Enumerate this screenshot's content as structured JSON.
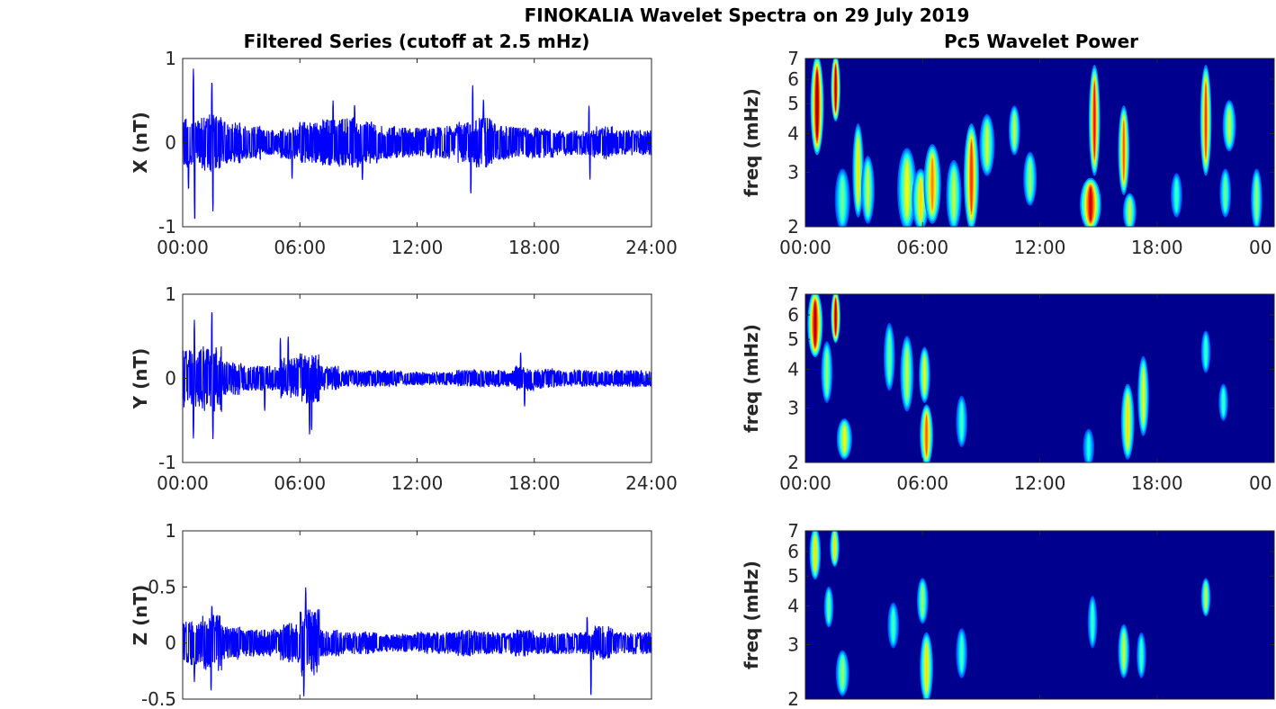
{
  "title": "FINOKALIA Wavelet Spectra on 29 July 2019",
  "left_title": "Filtered Series (cutoff at 2.5 mHz)",
  "right_title": "Pc5 Wavelet Power",
  "colors": {
    "series": "#0000ff",
    "background_power": "#00008f",
    "axis": "#262626"
  },
  "chart_data": [
    {
      "type": "line",
      "component": "X",
      "ylabel": "X (nT)",
      "ylim": [
        -1,
        1
      ],
      "yticks": [
        "-1",
        "0",
        "1"
      ],
      "ytick_values": [
        -1,
        0,
        1
      ],
      "xlim_hours": [
        0,
        24
      ],
      "xticks": [
        "00:00",
        "06:00",
        "12:00",
        "18:00",
        "24:00"
      ],
      "hourly_envelope_nT": [
        0.3,
        0.35,
        0.25,
        0.2,
        0.15,
        0.2,
        0.25,
        0.28,
        0.3,
        0.25,
        0.2,
        0.18,
        0.18,
        0.2,
        0.25,
        0.3,
        0.2,
        0.18,
        0.18,
        0.15,
        0.15,
        0.2,
        0.15,
        0.15
      ],
      "spikes": [
        [
          0.55,
          0.92
        ],
        [
          0.62,
          -1.0
        ],
        [
          1.5,
          0.78
        ],
        [
          1.55,
          -0.85
        ],
        [
          0.3,
          -0.6
        ],
        [
          7.7,
          0.52
        ],
        [
          8.8,
          0.48
        ],
        [
          14.85,
          0.7
        ],
        [
          14.75,
          -0.65
        ],
        [
          15.4,
          0.55
        ],
        [
          20.8,
          0.45
        ],
        [
          20.85,
          -0.45
        ],
        [
          5.6,
          -0.45
        ],
        [
          9.2,
          -0.48
        ]
      ]
    },
    {
      "type": "line",
      "component": "Y",
      "ylabel": "Y (nT)",
      "ylim": [
        -1,
        1
      ],
      "yticks": [
        "-1",
        "0",
        "1"
      ],
      "ytick_values": [
        -1,
        0,
        1
      ],
      "xlim_hours": [
        0,
        24
      ],
      "xticks": [
        "00:00",
        "06:00",
        "12:00",
        "18:00",
        "24:00"
      ],
      "hourly_envelope_nT": [
        0.35,
        0.4,
        0.2,
        0.15,
        0.15,
        0.25,
        0.3,
        0.15,
        0.1,
        0.1,
        0.1,
        0.08,
        0.08,
        0.08,
        0.1,
        0.1,
        0.1,
        0.15,
        0.12,
        0.1,
        0.1,
        0.1,
        0.1,
        0.1
      ],
      "spikes": [
        [
          1.5,
          0.86
        ],
        [
          0.6,
          0.7
        ],
        [
          0.55,
          -0.75
        ],
        [
          1.55,
          -0.75
        ],
        [
          5.0,
          0.5
        ],
        [
          5.4,
          0.52
        ],
        [
          6.5,
          -0.7
        ],
        [
          6.6,
          -0.65
        ],
        [
          17.3,
          0.32
        ],
        [
          17.5,
          -0.35
        ],
        [
          4.2,
          -0.4
        ]
      ]
    },
    {
      "type": "line",
      "component": "Z",
      "ylabel": "Z (nT)",
      "ylim": [
        -0.5,
        1
      ],
      "yticks": [
        "-0.5",
        "0",
        "0.5",
        "1"
      ],
      "ytick_values": [
        -0.5,
        0,
        0.5,
        1
      ],
      "xlim_hours": [
        0,
        24
      ],
      "hourly_envelope_nT": [
        0.2,
        0.25,
        0.15,
        0.12,
        0.12,
        0.18,
        0.3,
        0.12,
        0.1,
        0.1,
        0.08,
        0.08,
        0.1,
        0.1,
        0.12,
        0.1,
        0.1,
        0.12,
        0.1,
        0.1,
        0.1,
        0.15,
        0.1,
        0.1
      ],
      "spikes": [
        [
          6.3,
          0.52
        ],
        [
          6.2,
          -0.5
        ],
        [
          1.5,
          0.36
        ],
        [
          1.45,
          -0.45
        ],
        [
          20.9,
          -0.5
        ],
        [
          20.7,
          0.25
        ],
        [
          0.6,
          -0.35
        ]
      ]
    },
    {
      "type": "heatmap",
      "component": "X",
      "ylabel": "freq (mHz)",
      "yscale": "log",
      "ylim": [
        2,
        7
      ],
      "yticks": [
        "2",
        "3",
        "4",
        "5",
        "6",
        "7"
      ],
      "ytick_values": [
        2,
        3,
        4,
        5,
        6,
        7
      ],
      "xlim_hours": [
        0,
        24
      ],
      "xticks": [
        "00:00",
        "06:00",
        "12:00",
        "18:00",
        "00"
      ],
      "blobs": [
        {
          "t": 0.6,
          "f": [
            3.5,
            7
          ],
          "w": 0.25,
          "p": 1.0
        },
        {
          "t": 1.55,
          "f": [
            4.5,
            7
          ],
          "w": 0.15,
          "p": 0.95
        },
        {
          "t": 1.9,
          "f": [
            2,
            3
          ],
          "w": 0.3,
          "p": 0.4
        },
        {
          "t": 2.7,
          "f": [
            2.2,
            4.2
          ],
          "w": 0.2,
          "p": 0.6
        },
        {
          "t": 3.2,
          "f": [
            2.1,
            3.3
          ],
          "w": 0.25,
          "p": 0.5
        },
        {
          "t": 5.2,
          "f": [
            2,
            3.5
          ],
          "w": 0.4,
          "p": 0.55
        },
        {
          "t": 5.9,
          "f": [
            2,
            3
          ],
          "w": 0.35,
          "p": 0.6
        },
        {
          "t": 6.5,
          "f": [
            2.1,
            3.6
          ],
          "w": 0.35,
          "p": 0.7
        },
        {
          "t": 7.6,
          "f": [
            2,
            3.2
          ],
          "w": 0.3,
          "p": 0.5
        },
        {
          "t": 8.5,
          "f": [
            2,
            4.2
          ],
          "w": 0.3,
          "p": 0.8
        },
        {
          "t": 9.3,
          "f": [
            3,
            4.5
          ],
          "w": 0.3,
          "p": 0.5
        },
        {
          "t": 10.7,
          "f": [
            3.5,
            4.8
          ],
          "w": 0.2,
          "p": 0.5
        },
        {
          "t": 11.5,
          "f": [
            2.4,
            3.4
          ],
          "w": 0.25,
          "p": 0.45
        },
        {
          "t": 14.6,
          "f": [
            2,
            2.8
          ],
          "w": 0.45,
          "p": 0.9
        },
        {
          "t": 14.8,
          "f": [
            3,
            6.5
          ],
          "w": 0.2,
          "p": 0.85
        },
        {
          "t": 16.3,
          "f": [
            2.6,
            4.8
          ],
          "w": 0.2,
          "p": 0.75
        },
        {
          "t": 16.6,
          "f": [
            2,
            2.5
          ],
          "w": 0.25,
          "p": 0.5
        },
        {
          "t": 19.0,
          "f": [
            2.2,
            2.9
          ],
          "w": 0.2,
          "p": 0.35
        },
        {
          "t": 20.5,
          "f": [
            3,
            6.5
          ],
          "w": 0.2,
          "p": 0.8
        },
        {
          "t": 21.7,
          "f": [
            3.6,
            5
          ],
          "w": 0.25,
          "p": 0.5
        },
        {
          "t": 21.5,
          "f": [
            2.2,
            3
          ],
          "w": 0.2,
          "p": 0.4
        },
        {
          "t": 23.1,
          "f": [
            2,
            3
          ],
          "w": 0.2,
          "p": 0.45
        }
      ]
    },
    {
      "type": "heatmap",
      "component": "Y",
      "ylabel": "freq (mHz)",
      "yscale": "log",
      "ylim": [
        2,
        7
      ],
      "yticks": [
        "2",
        "3",
        "4",
        "5",
        "6",
        "7"
      ],
      "ytick_values": [
        2,
        3,
        4,
        5,
        6,
        7
      ],
      "xlim_hours": [
        0,
        24
      ],
      "xticks": [
        "00:00",
        "06:00",
        "12:00",
        "18:00",
        "00"
      ],
      "blobs": [
        {
          "t": 0.5,
          "f": [
            4.5,
            7
          ],
          "w": 0.3,
          "p": 0.95
        },
        {
          "t": 1.55,
          "f": [
            5,
            7
          ],
          "w": 0.15,
          "p": 0.95
        },
        {
          "t": 1.1,
          "f": [
            3.2,
            4.8
          ],
          "w": 0.2,
          "p": 0.45
        },
        {
          "t": 2.0,
          "f": [
            2.1,
            2.7
          ],
          "w": 0.3,
          "p": 0.55
        },
        {
          "t": 4.3,
          "f": [
            3.5,
            5.5
          ],
          "w": 0.2,
          "p": 0.4
        },
        {
          "t": 5.2,
          "f": [
            3,
            5
          ],
          "w": 0.25,
          "p": 0.5
        },
        {
          "t": 6.2,
          "f": [
            2,
            3
          ],
          "w": 0.25,
          "p": 0.75
        },
        {
          "t": 6.1,
          "f": [
            3.2,
            4.6
          ],
          "w": 0.2,
          "p": 0.55
        },
        {
          "t": 8.0,
          "f": [
            2.3,
            3.2
          ],
          "w": 0.2,
          "p": 0.35
        },
        {
          "t": 14.5,
          "f": [
            2,
            2.5
          ],
          "w": 0.2,
          "p": 0.3
        },
        {
          "t": 16.5,
          "f": [
            2.1,
            3.5
          ],
          "w": 0.25,
          "p": 0.6
        },
        {
          "t": 17.3,
          "f": [
            2.5,
            4.3
          ],
          "w": 0.2,
          "p": 0.55
        },
        {
          "t": 20.5,
          "f": [
            4,
            5.2
          ],
          "w": 0.15,
          "p": 0.35
        },
        {
          "t": 21.4,
          "f": [
            2.8,
            3.5
          ],
          "w": 0.15,
          "p": 0.35
        }
      ]
    },
    {
      "type": "heatmap",
      "component": "Z",
      "ylabel": "freq (mHz)",
      "yscale": "log",
      "ylim": [
        2,
        7
      ],
      "yticks": [
        "2",
        "3",
        "4",
        "5",
        "6",
        "7"
      ],
      "ytick_values": [
        2,
        3,
        4,
        5,
        6,
        7
      ],
      "xlim_hours": [
        0,
        24
      ],
      "blobs": [
        {
          "t": 0.5,
          "f": [
            5,
            7
          ],
          "w": 0.2,
          "p": 0.6
        },
        {
          "t": 1.5,
          "f": [
            5.5,
            7
          ],
          "w": 0.15,
          "p": 0.6
        },
        {
          "t": 1.2,
          "f": [
            3.5,
            4.5
          ],
          "w": 0.15,
          "p": 0.4
        },
        {
          "t": 1.9,
          "f": [
            2.1,
            2.8
          ],
          "w": 0.25,
          "p": 0.45
        },
        {
          "t": 4.5,
          "f": [
            3,
            4
          ],
          "w": 0.2,
          "p": 0.35
        },
        {
          "t": 6.2,
          "f": [
            2,
            3.2
          ],
          "w": 0.25,
          "p": 0.6
        },
        {
          "t": 6.0,
          "f": [
            3.6,
            4.8
          ],
          "w": 0.2,
          "p": 0.45
        },
        {
          "t": 8.0,
          "f": [
            2.4,
            3.3
          ],
          "w": 0.2,
          "p": 0.35
        },
        {
          "t": 14.7,
          "f": [
            3,
            4.2
          ],
          "w": 0.15,
          "p": 0.35
        },
        {
          "t": 16.3,
          "f": [
            2.4,
            3.4
          ],
          "w": 0.2,
          "p": 0.5
        },
        {
          "t": 17.2,
          "f": [
            2.4,
            3.2
          ],
          "w": 0.15,
          "p": 0.35
        },
        {
          "t": 20.5,
          "f": [
            3.8,
            4.8
          ],
          "w": 0.15,
          "p": 0.5
        }
      ]
    }
  ]
}
